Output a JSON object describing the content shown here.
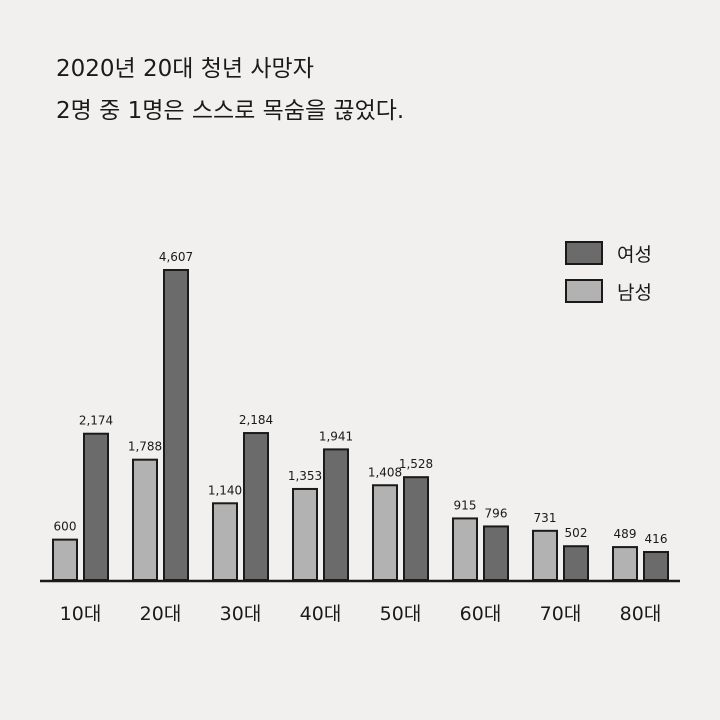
{
  "title_lines": [
    "2020년 20대 청년 사망자",
    "2명 중 1명은 스스로 목숨을 끊었다."
  ],
  "colors": {
    "female": "#6b6b6b",
    "male": "#b2b2b2",
    "stroke": "#1a1a1a"
  },
  "chart_data": {
    "type": "bar",
    "categories": [
      "10대",
      "20대",
      "30대",
      "40대",
      "50대",
      "60대",
      "70대",
      "80대"
    ],
    "series": [
      {
        "name": "남성",
        "values": [
          600,
          1788,
          1140,
          1353,
          1408,
          915,
          731,
          489
        ]
      },
      {
        "name": "여성",
        "values": [
          2174,
          4607,
          2184,
          1941,
          1528,
          796,
          502,
          416
        ]
      }
    ],
    "data_labels": {
      "남성": [
        "600",
        "1,788",
        "1,140",
        "1,353",
        "1,408",
        "915",
        "731",
        "489"
      ],
      "여성": [
        "2,174",
        "4,607",
        "2,184",
        "1,941",
        "1,528",
        "796",
        "502",
        "416"
      ]
    },
    "legend": [
      "여성",
      "남성"
    ],
    "legend_placement": "top-right",
    "ylim": [
      0,
      4800
    ],
    "grid": false
  }
}
